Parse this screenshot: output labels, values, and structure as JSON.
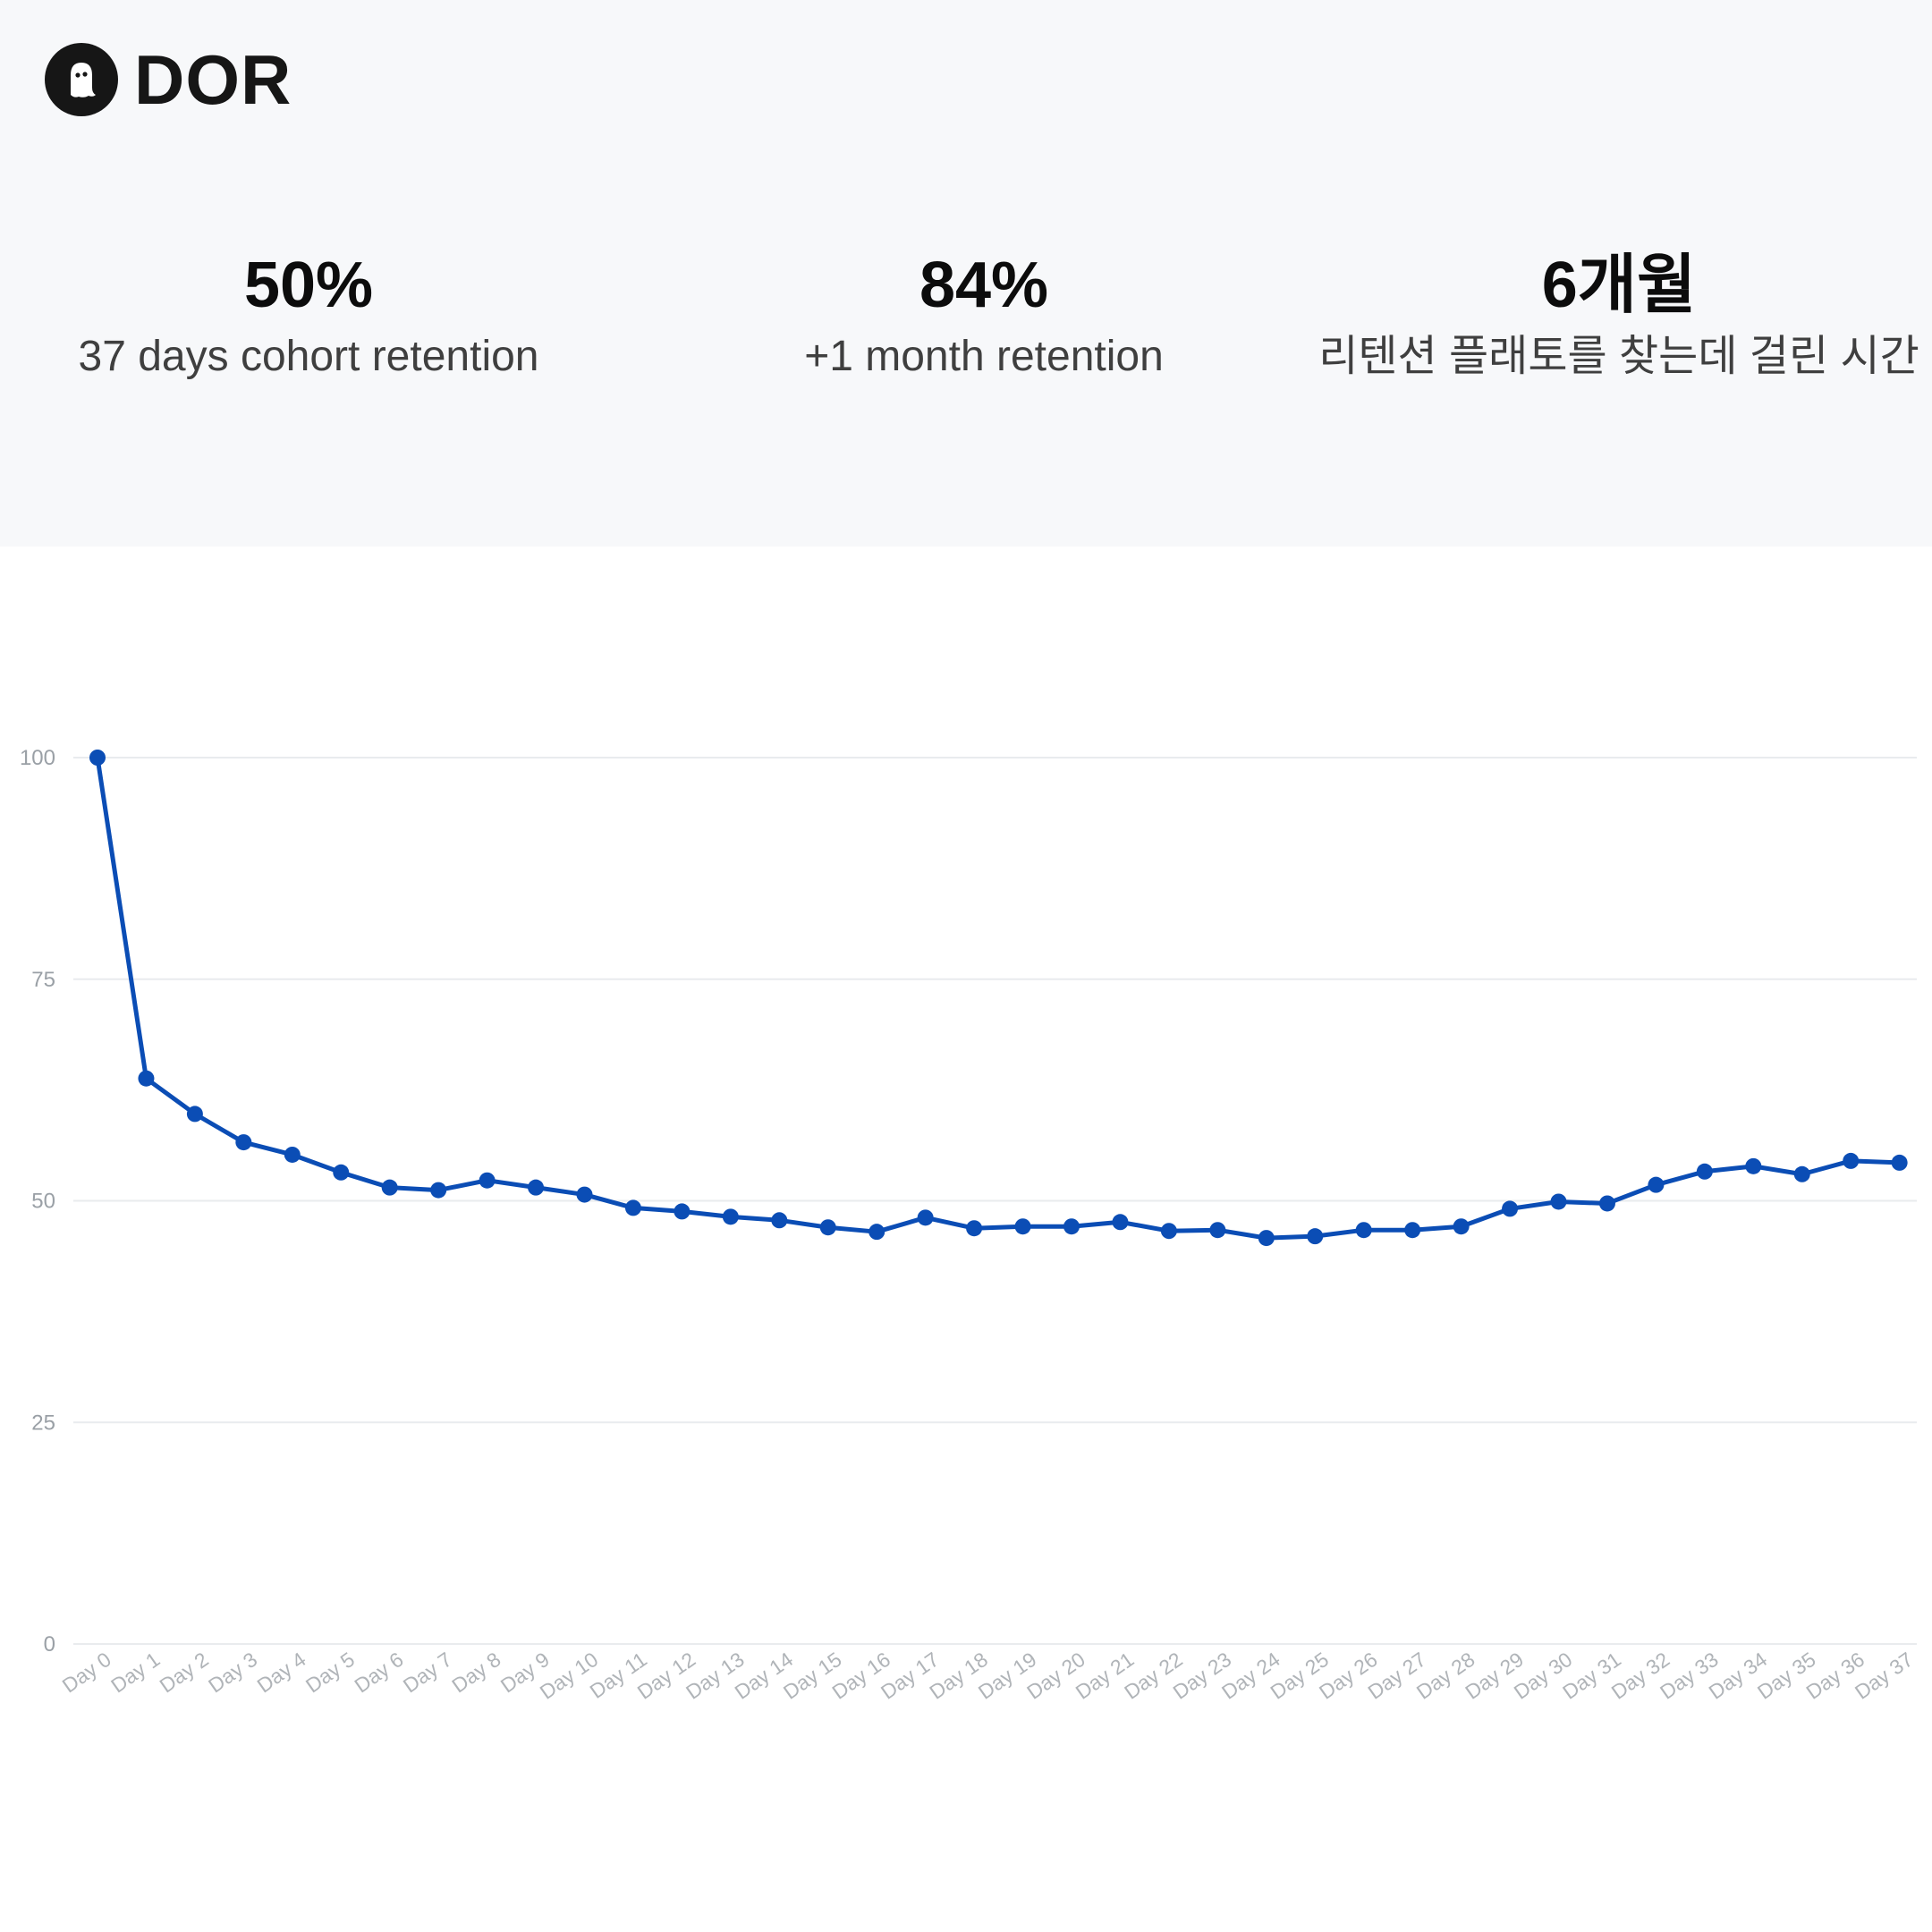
{
  "brand": {
    "name": "DOR",
    "logo_icon": "ghost-icon"
  },
  "stats": [
    {
      "value": "50%",
      "label": "37 days cohort retention"
    },
    {
      "value": "84%",
      "label": "+1 month retention"
    },
    {
      "value": "6개월",
      "label": "리텐션 플래토를 찾는데 걸린 시간"
    }
  ],
  "colors": {
    "panel_bg": "#f7f8fa",
    "line": "#0b4db5",
    "grid": "#e9ebee"
  },
  "chart_data": {
    "type": "line",
    "title": "",
    "xlabel": "",
    "ylabel": "",
    "ylim": [
      0,
      100
    ],
    "yticks": [
      0,
      25,
      50,
      75,
      100
    ],
    "grid": true,
    "categories": [
      "Day 0",
      "Day 1",
      "Day 2",
      "Day 3",
      "Day 4",
      "Day 5",
      "Day 6",
      "Day 7",
      "Day 8",
      "Day 9",
      "Day 10",
      "Day 11",
      "Day 12",
      "Day 13",
      "Day 14",
      "Day 15",
      "Day 16",
      "Day 17",
      "Day 18",
      "Day 19",
      "Day 20",
      "Day 21",
      "Day 22",
      "Day 23",
      "Day 24",
      "Day 25",
      "Day 26",
      "Day 27",
      "Day 28",
      "Day 29",
      "Day 30",
      "Day 31",
      "Day 32",
      "Day 33",
      "Day 34",
      "Day 35",
      "Day 36",
      "Day 37"
    ],
    "series": [
      {
        "values": [
          100,
          63.8,
          59.8,
          56.6,
          55.2,
          53.2,
          51.5,
          51.2,
          52.3,
          51.5,
          50.7,
          49.2,
          48.8,
          48.2,
          47.8,
          47.0,
          46.5,
          48.1,
          46.9,
          47.1,
          47.1,
          47.6,
          46.6,
          46.7,
          45.8,
          46.0,
          46.7,
          46.7,
          47.1,
          49.1,
          49.9,
          49.7,
          51.8,
          53.3,
          53.9,
          53.0,
          54.5,
          54.3
        ]
      }
    ]
  }
}
